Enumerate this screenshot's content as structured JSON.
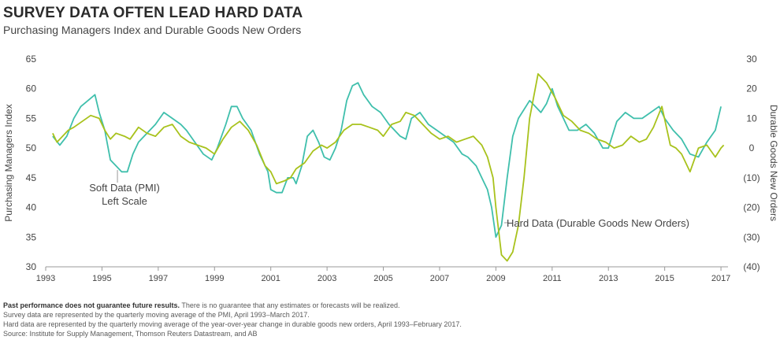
{
  "header": {
    "title": "SURVEY DATA OFTEN LEAD HARD DATA",
    "subtitle": "Purchasing Managers Index and Durable Goods New Orders"
  },
  "colors": {
    "pmi": "#3fbfac",
    "durable": "#a8c21c",
    "axis": "#999999",
    "text": "#444444"
  },
  "chart_data": {
    "type": "line",
    "xlabel": "",
    "ylabel": "Purchasing Managers Index",
    "y2label": "Durable Goods New Orders",
    "xlim": [
      1993,
      2017.25
    ],
    "ylim": [
      30,
      65
    ],
    "y2lim": [
      -40,
      30
    ],
    "x_ticks": [
      "1993",
      "1995",
      "1997",
      "1999",
      "2001",
      "2003",
      "2005",
      "2007",
      "2009",
      "2011",
      "2013",
      "2015",
      "2017"
    ],
    "y_ticks": [
      "65",
      "60",
      "55",
      "50",
      "45",
      "40",
      "35",
      "30"
    ],
    "y2_ticks": [
      "30",
      "20",
      "10",
      "0",
      "(10)",
      "(20)",
      "(30)",
      "(40)"
    ],
    "grid": false,
    "annotations": [
      {
        "text": "Soft Data (PMI)",
        "series": "pmi"
      },
      {
        "text": "Left Scale",
        "series": "pmi"
      },
      {
        "text": "Hard Data (Durable Goods New Orders)",
        "series": "durable"
      }
    ],
    "series": [
      {
        "name": "Purchasing Managers Index",
        "axis": "left",
        "x": [
          1993.25,
          1993.5,
          1993.75,
          1994.0,
          1994.25,
          1994.5,
          1994.75,
          1994.9,
          1995.1,
          1995.3,
          1995.5,
          1995.7,
          1995.9,
          1996.1,
          1996.3,
          1996.6,
          1996.9,
          1997.2,
          1997.5,
          1997.8,
          1998.0,
          1998.3,
          1998.6,
          1998.9,
          1999.1,
          1999.4,
          1999.6,
          1999.8,
          2000.0,
          2000.3,
          2000.6,
          2000.9,
          2001.0,
          2001.2,
          2001.4,
          2001.6,
          2001.8,
          2001.9,
          2002.1,
          2002.3,
          2002.5,
          2002.7,
          2002.9,
          2003.1,
          2003.3,
          2003.5,
          2003.7,
          2003.9,
          2004.1,
          2004.3,
          2004.6,
          2004.9,
          2005.2,
          2005.4,
          2005.6,
          2005.8,
          2006.0,
          2006.3,
          2006.6,
          2006.9,
          2007.2,
          2007.5,
          2007.8,
          2008.0,
          2008.3,
          2008.5,
          2008.7,
          2008.85,
          2009.0,
          2009.2,
          2009.4,
          2009.6,
          2009.8,
          2010.0,
          2010.2,
          2010.4,
          2010.6,
          2010.8,
          2011.0,
          2011.2,
          2011.4,
          2011.6,
          2011.9,
          2012.2,
          2012.5,
          2012.8,
          2013.0,
          2013.3,
          2013.6,
          2013.9,
          2014.2,
          2014.5,
          2014.8,
          2015.0,
          2015.3,
          2015.6,
          2015.9,
          2016.2,
          2016.5,
          2016.8,
          2017.0
        ],
        "values": [
          52,
          50.5,
          52,
          55,
          57,
          58,
          59,
          56,
          53,
          48,
          47,
          46,
          46,
          49,
          51,
          52.5,
          54,
          56,
          55,
          54,
          53,
          51,
          49,
          48,
          50,
          54,
          57,
          57,
          55,
          53,
          49,
          46,
          43,
          42.5,
          42.5,
          45,
          45,
          44,
          47,
          52,
          53,
          51,
          48.5,
          48,
          50,
          53,
          58,
          60.5,
          61,
          59,
          57,
          56,
          54,
          53,
          52,
          51.5,
          55,
          56,
          54,
          53,
          52,
          51,
          49,
          48.5,
          47,
          45,
          43,
          40,
          35,
          37,
          45,
          52,
          55,
          56.5,
          58,
          57,
          56,
          57.5,
          60,
          57,
          55,
          53,
          53,
          54,
          52.5,
          50,
          50,
          54.5,
          56,
          55,
          55,
          56,
          57,
          55,
          53,
          51.5,
          49,
          48.5,
          51,
          53,
          57
        ]
      },
      {
        "name": "Durable Goods New Orders",
        "axis": "right",
        "x": [
          1993.25,
          1993.4,
          1993.6,
          1993.8,
          1994.0,
          1994.3,
          1994.6,
          1994.9,
          1995.1,
          1995.3,
          1995.5,
          1995.8,
          1996.0,
          1996.3,
          1996.6,
          1996.9,
          1997.2,
          1997.5,
          1997.8,
          1998.1,
          1998.4,
          1998.7,
          1999.0,
          1999.3,
          1999.6,
          1999.9,
          2000.2,
          2000.5,
          2000.8,
          2001.0,
          2001.2,
          2001.5,
          2001.7,
          2001.9,
          2002.2,
          2002.5,
          2002.8,
          2003.0,
          2003.3,
          2003.6,
          2003.9,
          2004.2,
          2004.5,
          2004.8,
          2005.0,
          2005.3,
          2005.6,
          2005.8,
          2006.1,
          2006.4,
          2006.7,
          2007.0,
          2007.3,
          2007.6,
          2007.9,
          2008.2,
          2008.5,
          2008.7,
          2008.9,
          2009.0,
          2009.2,
          2009.4,
          2009.6,
          2009.8,
          2010.0,
          2010.2,
          2010.5,
          2010.8,
          2011.1,
          2011.4,
          2011.7,
          2012.0,
          2012.3,
          2012.6,
          2012.9,
          2013.2,
          2013.5,
          2013.8,
          2014.1,
          2014.35,
          2014.6,
          2014.9,
          2015.2,
          2015.4,
          2015.6,
          2015.9,
          2016.2,
          2016.5,
          2016.8,
          2017.0,
          2017.1
        ],
        "values": [
          5,
          2,
          4,
          6,
          7,
          9,
          11,
          10,
          6,
          3,
          5,
          4,
          3,
          7,
          5,
          4,
          7,
          8,
          4,
          2,
          1,
          0,
          -2,
          3,
          7,
          9,
          6,
          1,
          -6,
          -8,
          -12,
          -11,
          -10,
          -7,
          -5,
          -1,
          1,
          0,
          2,
          6,
          8,
          8,
          7,
          6,
          4,
          8,
          9,
          12,
          11,
          8,
          5,
          3,
          4,
          2,
          3,
          4,
          1,
          -3,
          -10,
          -20,
          -36,
          -38,
          -35,
          -26,
          -10,
          10,
          25,
          22,
          17,
          11,
          9,
          6,
          5,
          3,
          2,
          0,
          1,
          4,
          2,
          3,
          7,
          14,
          1,
          0,
          -2,
          -8,
          0,
          1,
          -3,
          0,
          1
        ]
      }
    ]
  },
  "footnotes": {
    "bold": "Past performance does not guarantee future results.",
    "line1": "There is no guarantee that any estimates or forecasts will be realized.",
    "line2": "Survey data are represented by the quarterly moving average of the PMI, April 1993–March 2017.",
    "line3": "Hard data are represented by the quarterly moving average of the year-over-year change in durable goods new orders, April 1993–February 2017.",
    "line4": "Source: Institute for Supply Management, Thomson Reuters Datastream, and AB"
  }
}
